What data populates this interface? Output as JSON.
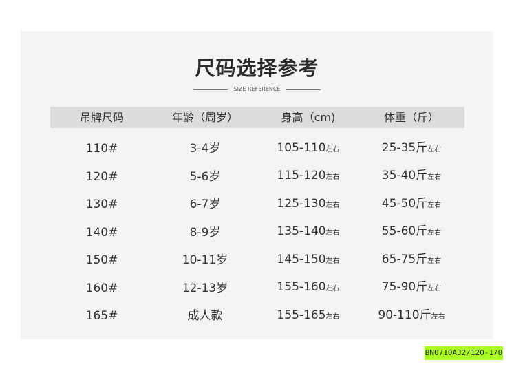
{
  "title": "尺码选择参考",
  "subtitle": "SIZE REFERENCE",
  "headers": [
    "吊牌尺码",
    "年龄（周岁）",
    "身高（cm)",
    "体重（斤）"
  ],
  "approx": "左右",
  "rows": [
    [
      "110#",
      "3-4岁",
      "105-110",
      "25-35斤"
    ],
    [
      "120#",
      "5-6岁",
      "115-120",
      "35-40斤"
    ],
    [
      "130#",
      "6-7岁",
      "125-130",
      "45-50斤"
    ],
    [
      "140#",
      "8-9岁",
      "135-140",
      "55-60斤"
    ],
    [
      "150#",
      "10-11岁",
      "145-150",
      "65-75斤"
    ],
    [
      "160#",
      "12-13岁",
      "155-160",
      "75-90斤"
    ],
    [
      "165#",
      "成人款",
      "155-165",
      "90-110斤"
    ]
  ],
  "product_code": "BN0710A32/120-170",
  "colors": {
    "panel": "#f4f4f4",
    "header": "#dcdcdc",
    "tag": "#aaff22"
  }
}
